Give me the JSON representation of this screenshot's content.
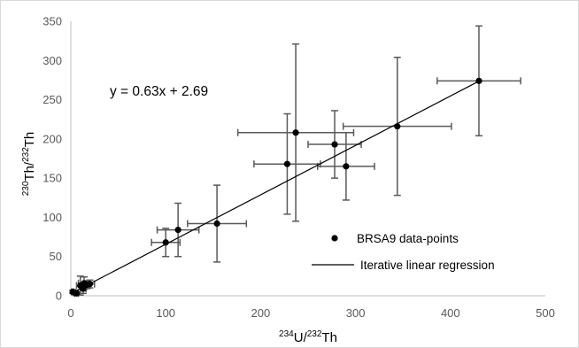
{
  "chart_data": {
    "type": "scatter",
    "xlabel": {
      "sup": "234",
      "base": "U/",
      "sup2": "232",
      "base2": "Th"
    },
    "ylabel": {
      "sup": "230",
      "base": "Th/",
      "sup2": "232",
      "base2": "Th"
    },
    "xlim": [
      0,
      500
    ],
    "ylim": [
      0,
      350
    ],
    "x_ticks": [
      "0",
      "100",
      "200",
      "300",
      "400",
      "500"
    ],
    "y_ticks": [
      "0",
      "50",
      "100",
      "150",
      "200",
      "250",
      "300",
      "350"
    ],
    "grid": false,
    "annotation": "y = 0.63x + 2.69",
    "regression": {
      "slope": 0.63,
      "intercept": 2.69,
      "x_range": [
        3,
        430
      ]
    },
    "legend_position": "bottom-right",
    "series": [
      {
        "name": "BRSA9 data-points",
        "marker": "circle",
        "color": "#000000",
        "points": [
          {
            "x": 2,
            "y": 5,
            "xerr": 1,
            "yerr": 2
          },
          {
            "x": 4,
            "y": 4,
            "xerr": 1,
            "yerr": 2
          },
          {
            "x": 6,
            "y": 3,
            "xerr": 2,
            "yerr": 2
          },
          {
            "x": 10,
            "y": 13,
            "xerr": 4,
            "yerr": 12
          },
          {
            "x": 13,
            "y": 9,
            "xerr": 3,
            "yerr": 6
          },
          {
            "x": 14,
            "y": 16,
            "xerr": 6,
            "yerr": 8
          },
          {
            "x": 17,
            "y": 14,
            "xerr": 4,
            "yerr": 5
          },
          {
            "x": 20,
            "y": 15,
            "xerr": 5,
            "yerr": 5
          },
          {
            "x": 100,
            "y": 68,
            "xerr": 15,
            "yerr": 18
          },
          {
            "x": 113,
            "y": 84,
            "xerr": 22,
            "yerr": 34
          },
          {
            "x": 154,
            "y": 92,
            "xerr": 31,
            "yerr": 49
          },
          {
            "x": 228,
            "y": 168,
            "xerr": 35,
            "yerr": 64
          },
          {
            "x": 237,
            "y": 208,
            "xerr": 61,
            "yerr": 113
          },
          {
            "x": 278,
            "y": 193,
            "xerr": 28,
            "yerr": 43
          },
          {
            "x": 290,
            "y": 165,
            "xerr": 30,
            "yerr": 43
          },
          {
            "x": 344,
            "y": 216,
            "xerr": 57,
            "yerr": 88
          },
          {
            "x": 430,
            "y": 274,
            "xerr": 44,
            "yerr": 70
          }
        ]
      },
      {
        "name": "Iterative linear regression",
        "marker": "line",
        "color": "#000000"
      }
    ],
    "colors": {
      "errorbar": "#595959",
      "axis": "#bfbfbf",
      "tick_text": "#595959"
    }
  }
}
